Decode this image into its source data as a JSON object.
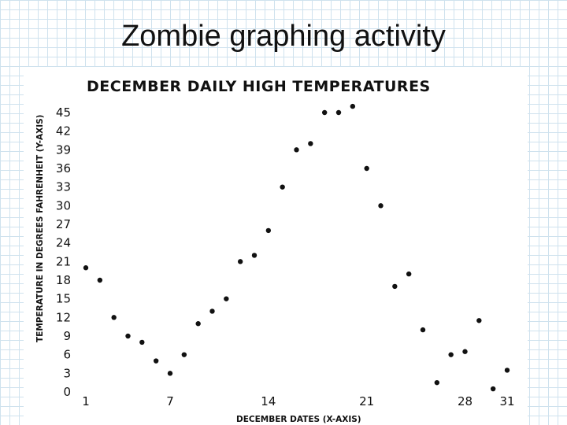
{
  "slide": {
    "title": "Zombie graphing activity"
  },
  "chart_data": {
    "type": "scatter",
    "title": "DECEMBER DAILY HIGH TEMPERATURES",
    "xlabel": "DECEMBER DATES (X-AXIS)",
    "ylabel": "TEMPERATURE IN DEGREES FAHRENHEIT (Y-AXIS)",
    "xlim": [
      1,
      31
    ],
    "ylim": [
      0,
      45
    ],
    "xticks": [
      "1",
      "7",
      "14",
      "21",
      "28",
      "31"
    ],
    "yticks": [
      "0",
      "3",
      "6",
      "9",
      "12",
      "15",
      "18",
      "21",
      "24",
      "27",
      "30",
      "33",
      "36",
      "39",
      "42",
      "45"
    ],
    "grid": false,
    "color": "#111111",
    "x": [
      1,
      2,
      3,
      4,
      5,
      6,
      7,
      8,
      9,
      10,
      11,
      12,
      13,
      14,
      15,
      16,
      17,
      18,
      19,
      20,
      21,
      22,
      23,
      24,
      25,
      26,
      27,
      28,
      29,
      30,
      31
    ],
    "y": [
      20,
      18,
      12,
      9,
      8,
      5,
      3,
      6,
      11,
      13,
      15,
      21,
      22,
      26,
      33,
      39,
      40,
      45,
      45,
      46,
      36,
      30,
      17,
      19,
      10,
      1.5,
      6,
      6.5,
      11.5,
      0.5,
      3.5
    ]
  }
}
